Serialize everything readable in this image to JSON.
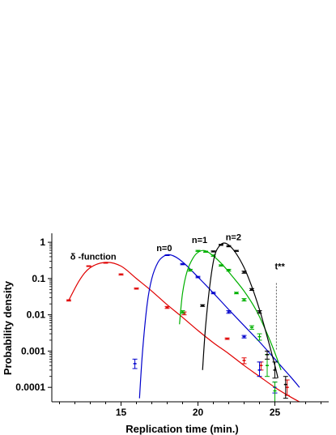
{
  "chart_data": {
    "type": "line",
    "xlabel": "Replication time  (min.)",
    "ylabel": "Probability density",
    "xlim": [
      10.5,
      28.5
    ],
    "ylim": [
      4e-05,
      1.3
    ],
    "yscale": "log",
    "x_ticks": [
      15,
      20,
      25
    ],
    "y_ticks": [
      {
        "value": 1,
        "label": "1"
      },
      {
        "value": 0.1,
        "label": "0.1"
      },
      {
        "value": 0.01,
        "label": "0.01"
      },
      {
        "value": 0.001,
        "label": "0.001"
      },
      {
        "value": 0.0001,
        "label": "0.0001"
      }
    ],
    "grid": false,
    "legend": "none",
    "annotations": [
      {
        "text": "δ -function",
        "x": 11.7,
        "y": 0.33
      },
      {
        "text": "n=0",
        "x": 17.3,
        "y": 0.57
      },
      {
        "text": "n=1",
        "x": 19.6,
        "y": 0.95
      },
      {
        "text": "n=2",
        "x": 21.8,
        "y": 1.15
      },
      {
        "text": "t**",
        "x": 25.0,
        "y": 0.18
      }
    ],
    "reference_line": {
      "x": 25.1,
      "y_from": 0.0011,
      "y_to": 0.075,
      "style": "dotted",
      "color": "#555555"
    },
    "series": [
      {
        "color": "#e00000",
        "curve": [
          [
            11.6,
            0.025
          ],
          [
            12.3,
            0.09
          ],
          [
            13.0,
            0.2
          ],
          [
            14.0,
            0.28
          ],
          [
            15.0,
            0.22
          ],
          [
            16.0,
            0.1
          ],
          [
            17.0,
            0.045
          ],
          [
            18.0,
            0.019
          ],
          [
            19.0,
            0.0085
          ],
          [
            20.0,
            0.0037
          ],
          [
            21.0,
            0.0017
          ],
          [
            22.0,
            0.00085
          ],
          [
            23.0,
            0.0004
          ],
          [
            24.0,
            0.0002
          ],
          [
            25.0,
            0.0001
          ],
          [
            26.0,
            5.5e-05
          ],
          [
            26.6,
            4e-05
          ]
        ],
        "points": [
          {
            "x": 11.6,
            "y": 0.025,
            "lo": 0.024,
            "hi": 0.026
          },
          {
            "x": 12.9,
            "y": 0.22,
            "lo": 0.215,
            "hi": 0.225
          },
          {
            "x": 14.0,
            "y": 0.27,
            "lo": 0.265,
            "hi": 0.275
          },
          {
            "x": 15.0,
            "y": 0.13,
            "lo": 0.125,
            "hi": 0.135
          },
          {
            "x": 16.0,
            "y": 0.053,
            "lo": 0.051,
            "hi": 0.055
          },
          {
            "x": 18.0,
            "y": 0.016,
            "lo": 0.015,
            "hi": 0.017
          },
          {
            "x": 19.1,
            "y": 0.011,
            "lo": 0.01,
            "hi": 0.012
          },
          {
            "x": 21.9,
            "y": 0.0022,
            "lo": 0.0021,
            "hi": 0.0023
          },
          {
            "x": 23.0,
            "y": 0.00055,
            "lo": 0.00045,
            "hi": 0.00065
          },
          {
            "x": 24.1,
            "y": 0.0004,
            "lo": 0.0003,
            "hi": 0.0005
          },
          {
            "x": 25.8,
            "y": 0.0001,
            "lo": 6e-05,
            "hi": 0.00016
          }
        ]
      },
      {
        "color": "#0000cc",
        "curve": [
          [
            16.2,
            5e-05
          ],
          [
            16.4,
            0.001
          ],
          [
            16.7,
            0.02
          ],
          [
            17.0,
            0.1
          ],
          [
            17.4,
            0.28
          ],
          [
            17.8,
            0.42
          ],
          [
            18.2,
            0.45
          ],
          [
            18.7,
            0.36
          ],
          [
            19.3,
            0.22
          ],
          [
            20.0,
            0.11
          ],
          [
            21.0,
            0.04
          ],
          [
            22.0,
            0.014
          ],
          [
            23.0,
            0.005
          ],
          [
            24.0,
            0.0018
          ],
          [
            25.0,
            0.0006
          ],
          [
            26.0,
            0.0002
          ],
          [
            26.6,
            0.0001
          ]
        ],
        "points": [
          {
            "x": 15.9,
            "y": 0.00045,
            "lo": 0.00033,
            "hi": 0.0006
          },
          {
            "x": 18.0,
            "y": 0.44,
            "lo": 0.43,
            "hi": 0.45
          },
          {
            "x": 19.0,
            "y": 0.25,
            "lo": 0.24,
            "hi": 0.26
          },
          {
            "x": 20.0,
            "y": 0.11,
            "lo": 0.105,
            "hi": 0.115
          },
          {
            "x": 21.0,
            "y": 0.04,
            "lo": 0.038,
            "hi": 0.042
          },
          {
            "x": 22.0,
            "y": 0.012,
            "lo": 0.011,
            "hi": 0.013
          },
          {
            "x": 23.0,
            "y": 0.0025,
            "lo": 0.0023,
            "hi": 0.0027
          },
          {
            "x": 24.0,
            "y": 0.0003,
            "lo": 0.0002,
            "hi": 0.0005
          },
          {
            "x": 25.0,
            "y": 0.0001,
            "lo": 7e-05,
            "hi": 0.00014
          }
        ]
      },
      {
        "color": "#00b000",
        "curve": [
          [
            18.8,
            0.0055
          ],
          [
            19.0,
            0.04
          ],
          [
            19.3,
            0.16
          ],
          [
            19.7,
            0.38
          ],
          [
            20.1,
            0.56
          ],
          [
            20.5,
            0.58
          ],
          [
            21.0,
            0.42
          ],
          [
            21.6,
            0.24
          ],
          [
            22.2,
            0.12
          ],
          [
            23.0,
            0.045
          ],
          [
            23.8,
            0.013
          ],
          [
            24.5,
            0.003
          ],
          [
            25.0,
            0.0009
          ],
          [
            25.4,
            0.0003
          ]
        ],
        "points": [
          {
            "x": 19.0,
            "y": 0.012,
            "lo": 0.011,
            "hi": 0.013
          },
          {
            "x": 19.5,
            "y": 0.17,
            "lo": 0.16,
            "hi": 0.18
          },
          {
            "x": 20.0,
            "y": 0.58,
            "lo": 0.56,
            "hi": 0.6
          },
          {
            "x": 20.5,
            "y": 0.55,
            "lo": 0.53,
            "hi": 0.57
          },
          {
            "x": 21.0,
            "y": 0.43,
            "lo": 0.41,
            "hi": 0.45
          },
          {
            "x": 21.5,
            "y": 0.23,
            "lo": 0.22,
            "hi": 0.24
          },
          {
            "x": 22.0,
            "y": 0.17,
            "lo": 0.16,
            "hi": 0.18
          },
          {
            "x": 22.5,
            "y": 0.04,
            "lo": 0.038,
            "hi": 0.042
          },
          {
            "x": 23.0,
            "y": 0.026,
            "lo": 0.024,
            "hi": 0.028
          },
          {
            "x": 23.5,
            "y": 0.0045,
            "lo": 0.004,
            "hi": 0.005
          },
          {
            "x": 24.0,
            "y": 0.0025,
            "lo": 0.002,
            "hi": 0.003
          },
          {
            "x": 24.5,
            "y": 0.0004,
            "lo": 0.0002,
            "hi": 0.0008
          },
          {
            "x": 25.0,
            "y": 8e-05,
            "lo": 4e-05,
            "hi": 0.00014
          }
        ]
      },
      {
        "color": "#000000",
        "curve": [
          [
            20.3,
            0.0003
          ],
          [
            20.5,
            0.005
          ],
          [
            20.8,
            0.08
          ],
          [
            21.1,
            0.45
          ],
          [
            21.5,
            0.88
          ],
          [
            21.9,
            0.9
          ],
          [
            22.4,
            0.55
          ],
          [
            23.0,
            0.2
          ],
          [
            23.5,
            0.06
          ],
          [
            24.0,
            0.014
          ],
          [
            24.5,
            0.0025
          ],
          [
            25.0,
            0.0004
          ],
          [
            25.2,
            0.00018
          ]
        ],
        "points": [
          {
            "x": 20.3,
            "y": 0.018,
            "lo": 0.017,
            "hi": 0.019
          },
          {
            "x": 21.0,
            "y": 0.56,
            "lo": 0.54,
            "hi": 0.58
          },
          {
            "x": 21.5,
            "y": 0.85,
            "lo": 0.82,
            "hi": 0.88
          },
          {
            "x": 22.0,
            "y": 0.78,
            "lo": 0.75,
            "hi": 0.81
          },
          {
            "x": 22.5,
            "y": 0.58,
            "lo": 0.56,
            "hi": 0.6
          },
          {
            "x": 23.0,
            "y": 0.15,
            "lo": 0.14,
            "hi": 0.16
          },
          {
            "x": 23.5,
            "y": 0.05,
            "lo": 0.047,
            "hi": 0.053
          },
          {
            "x": 24.0,
            "y": 0.012,
            "lo": 0.011,
            "hi": 0.013
          },
          {
            "x": 24.5,
            "y": 0.0008,
            "lo": 0.0006,
            "hi": 0.001
          },
          {
            "x": 25.0,
            "y": 0.0003,
            "lo": 0.00018,
            "hi": 0.0005
          },
          {
            "x": 25.7,
            "y": 0.00012,
            "lo": 5e-05,
            "hi": 0.0002
          }
        ]
      }
    ]
  }
}
